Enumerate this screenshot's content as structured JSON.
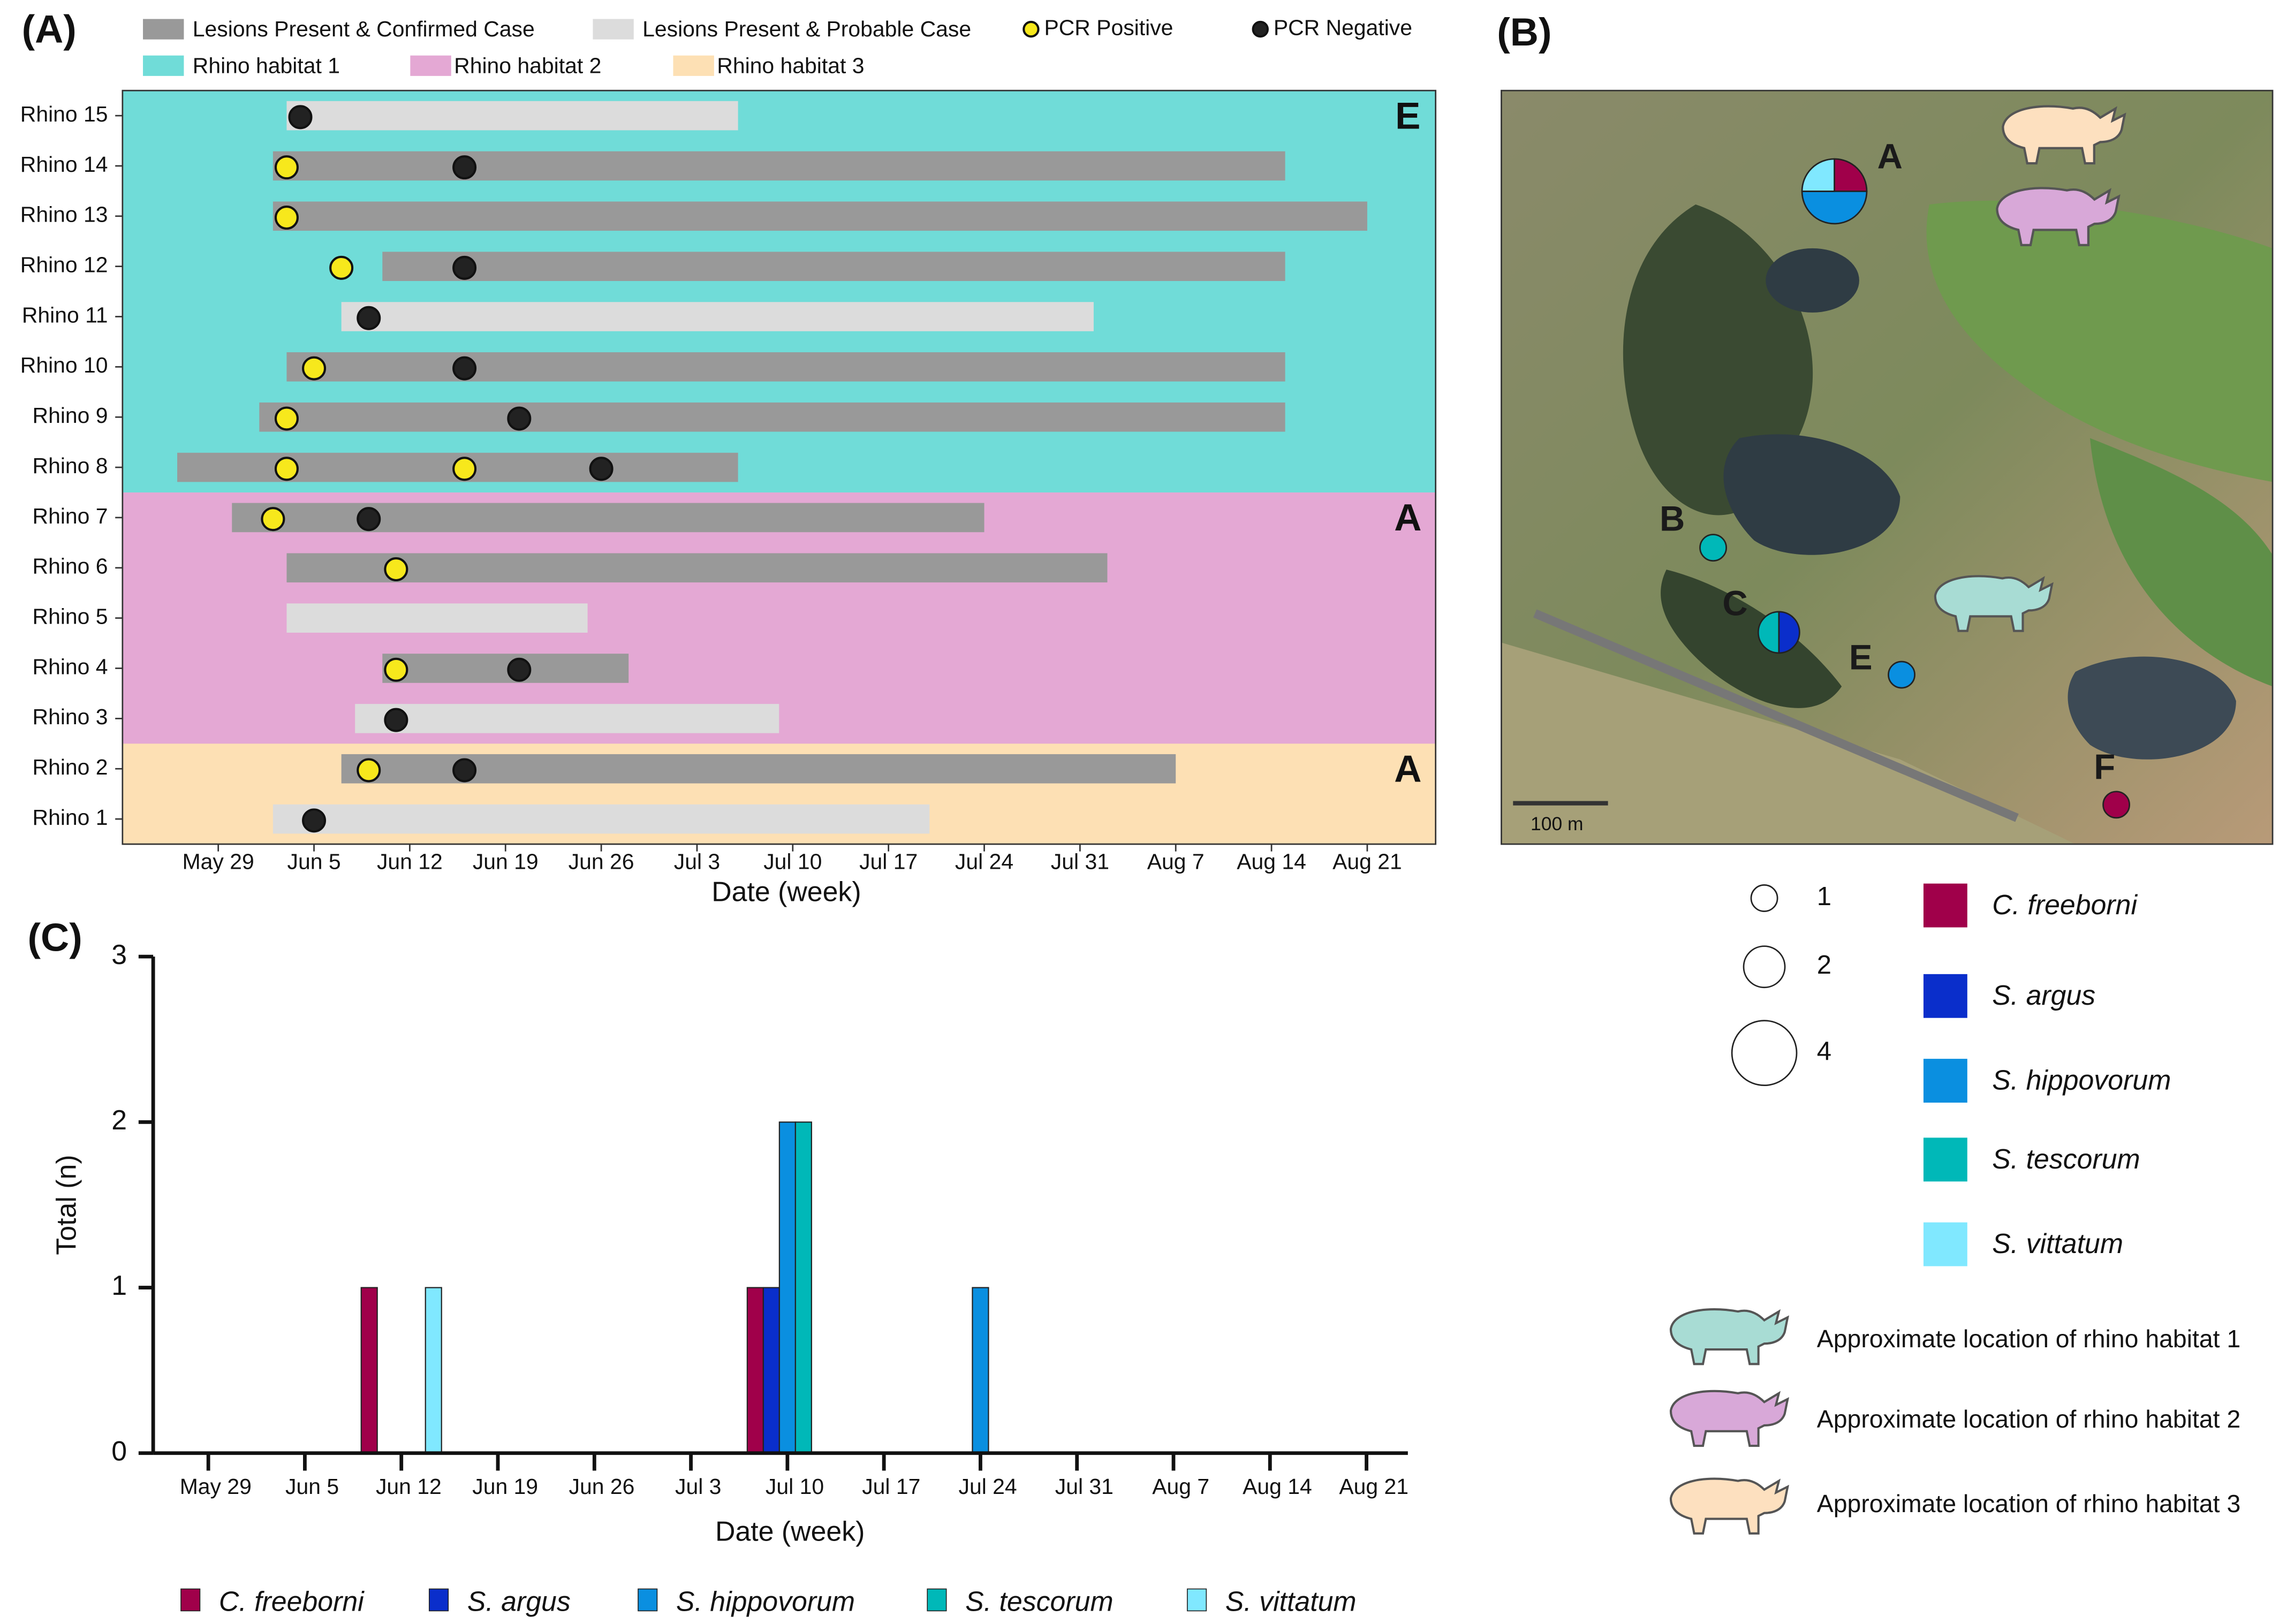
{
  "figure_labels": [
    "(A)",
    "(B)",
    "(C)"
  ],
  "chart_data": [
    {
      "type": "timeline",
      "categories": [
        "Rhino 15",
        "Rhino 14",
        "Rhino 13",
        "Rhino 12",
        "Rhino 11",
        "Rhino 10",
        "Rhino 9",
        "Rhino 8",
        "Rhino 7",
        "Rhino 6",
        "Rhino 5",
        "Rhino 4",
        "Rhino 3",
        "Rhino 2",
        "Rhino 1"
      ],
      "series": [
        {
          "name": "Lesions Present & Confirmed Case",
          "color": "#999999",
          "starts": [
            null,
            4,
            4,
            12,
            null,
            5,
            3,
            -3,
            1,
            5,
            null,
            12,
            null,
            9,
            null
          ],
          "ends": [
            null,
            78,
            84,
            78,
            null,
            78,
            78,
            38,
            56,
            65,
            null,
            30,
            null,
            70,
            null
          ]
        },
        {
          "name": "Lesions Present & Probable Case",
          "color": "#dcdcdc",
          "starts": [
            5,
            null,
            null,
            null,
            9,
            null,
            null,
            null,
            null,
            null,
            5,
            null,
            10,
            null,
            4
          ],
          "ends": [
            38,
            null,
            null,
            null,
            64,
            null,
            null,
            null,
            null,
            null,
            27,
            null,
            41,
            null,
            52
          ]
        }
      ],
      "points": [
        {
          "name": "PCR Positive",
          "color": "#f7e81c",
          "values": [
            [],
            [
              5
            ],
            [
              5
            ],
            [
              9
            ],
            [],
            [
              7
            ],
            [
              5
            ],
            [
              5,
              18
            ],
            [
              4
            ],
            [
              13
            ],
            [],
            [
              13
            ],
            [],
            [
              11
            ],
            []
          ]
        },
        {
          "name": "PCR Negative",
          "color": "#222222",
          "values": [
            [
              6
            ],
            [
              18
            ],
            [],
            [
              18
            ],
            [
              11
            ],
            [
              18
            ],
            [
              22
            ],
            [
              28
            ],
            [
              11
            ],
            [],
            [],
            [
              22
            ],
            [
              13
            ],
            [
              18
            ],
            [
              7
            ]
          ]
        }
      ],
      "habitats": [
        {
          "name": "Rhino habitat 1",
          "color": "#70dcd8",
          "label": "E"
        },
        {
          "name": "Rhino habitat 2",
          "color": "#e4a8d4",
          "label": "A"
        },
        {
          "name": "Rhino habitat 3",
          "color": "#fde0b4",
          "label": "A"
        }
      ],
      "habitat_of": [
        0,
        0,
        0,
        0,
        0,
        0,
        0,
        0,
        1,
        1,
        1,
        1,
        1,
        2,
        2
      ],
      "xlabel": "Date (week)",
      "xlim": [
        -7,
        89
      ],
      "xticks": [
        {
          "value": 0,
          "label": "May 29"
        },
        {
          "value": 7,
          "label": "Jun 5"
        },
        {
          "value": 14,
          "label": "Jun 12"
        },
        {
          "value": 21,
          "label": "Jun 19"
        },
        {
          "value": 28,
          "label": "Jun 26"
        },
        {
          "value": 35,
          "label": "Jul 3"
        },
        {
          "value": 42,
          "label": "Jul 10"
        },
        {
          "value": 49,
          "label": "Jul 17"
        },
        {
          "value": 56,
          "label": "Jul 24"
        },
        {
          "value": 63,
          "label": "Jul 31"
        },
        {
          "value": 70,
          "label": "Aug 7"
        },
        {
          "value": 77,
          "label": "Aug 14"
        },
        {
          "value": 84,
          "label": "Aug 21"
        }
      ]
    },
    {
      "type": "bar",
      "x": [
        14,
        42,
        56
      ],
      "series": [
        {
          "name": "C. freeborni",
          "color": "#a0004a",
          "values": [
            1,
            1,
            0
          ]
        },
        {
          "name": "S. argus",
          "color": "#0a2ecb",
          "values": [
            0,
            1,
            0
          ]
        },
        {
          "name": "S. hippovorum",
          "color": "#0a8fe0",
          "values": [
            0,
            2,
            1
          ]
        },
        {
          "name": "S. tescorum",
          "color": "#00b8b8",
          "values": [
            0,
            2,
            0
          ]
        },
        {
          "name": "S. vittatum",
          "color": "#80e8ff",
          "values": [
            1,
            0,
            0
          ]
        }
      ],
      "xlabel": "Date (week)",
      "ylabel": "Total (n)",
      "xlim": [
        -4,
        87
      ],
      "ylim": [
        0,
        3
      ],
      "yticks": [
        0,
        1,
        2,
        3
      ],
      "xticks": [
        {
          "value": 0,
          "label": "May 29"
        },
        {
          "value": 7,
          "label": "Jun 5"
        },
        {
          "value": 14,
          "label": "Jun 12"
        },
        {
          "value": 21,
          "label": "Jun 19"
        },
        {
          "value": 28,
          "label": "Jun 26"
        },
        {
          "value": 35,
          "label": "Jul 3"
        },
        {
          "value": 42,
          "label": "Jul 10"
        },
        {
          "value": 49,
          "label": "Jul 17"
        },
        {
          "value": 56,
          "label": "Jul 24"
        },
        {
          "value": 63,
          "label": "Jul 31"
        },
        {
          "value": 70,
          "label": "Aug 7"
        },
        {
          "value": 77,
          "label": "Aug 14"
        },
        {
          "value": 84,
          "label": "Aug 21"
        }
      ]
    }
  ],
  "map": {
    "type": "map",
    "scale_label": "100 m",
    "sites": [
      {
        "label": "A",
        "counts": [
          1,
          0,
          2,
          0,
          1
        ]
      },
      {
        "label": "B",
        "counts": [
          0,
          0,
          0,
          1,
          0
        ]
      },
      {
        "label": "C",
        "counts": [
          0,
          1,
          0,
          1,
          0
        ]
      },
      {
        "label": "E",
        "counts": [
          0,
          0,
          1,
          0,
          0
        ]
      },
      {
        "label": "F",
        "counts": [
          1,
          0,
          0,
          0,
          0
        ]
      }
    ],
    "size_legend": [
      1,
      2,
      4
    ],
    "habitat_legend": [
      "Approximate location of rhino habitat 1",
      "Approximate location of rhino habitat 2",
      "Approximate location of rhino habitat 3"
    ]
  }
}
